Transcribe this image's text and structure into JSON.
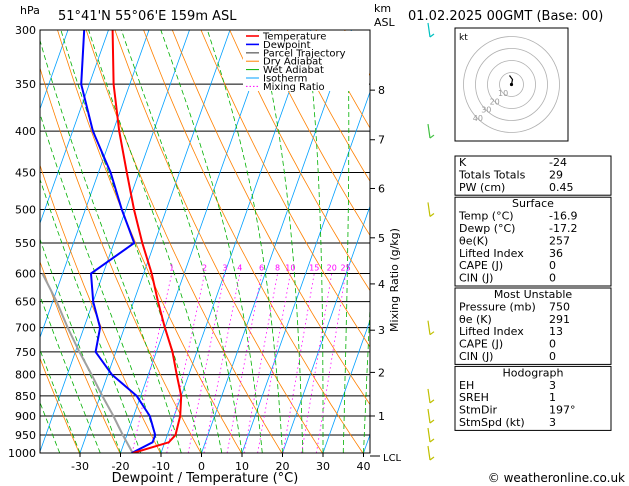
{
  "header": {
    "unit_hpa": "hPa",
    "location": "51°41'N  55°06'E  159m  ASL",
    "unit_km": "km",
    "unit_asl": "ASL",
    "datetime": "01.02.2025  00GMT  (Base: 00)"
  },
  "footer": {
    "copyright": "© weatheronline.co.uk"
  },
  "chart_data": {
    "type": "skew-t",
    "xlabel": "Dewpoint / Temperature (°C)",
    "ylabel_right": "Mixing Ratio (g/kg)",
    "pressure_levels": [
      300,
      350,
      400,
      450,
      500,
      550,
      600,
      650,
      700,
      750,
      800,
      850,
      900,
      950,
      1000
    ],
    "xticks": [
      -30,
      -20,
      -10,
      0,
      10,
      20,
      30,
      40
    ],
    "km_ticks": [
      {
        "km": "8",
        "p": 356
      },
      {
        "km": "7",
        "p": 410
      },
      {
        "km": "6",
        "p": 471
      },
      {
        "km": "5",
        "p": 542
      },
      {
        "km": "4",
        "p": 618
      },
      {
        "km": "3",
        "p": 705
      },
      {
        "km": "2",
        "p": 795
      },
      {
        "km": "1",
        "p": 900
      }
    ],
    "lcl_label": "LCL",
    "mixing_ratio_labels": [
      "1",
      "2",
      "3",
      "4",
      "6",
      "8",
      "10",
      "15",
      "20",
      "25"
    ],
    "legend": [
      "Temperature",
      "Dewpoint",
      "Parcel Trajectory",
      "Dry Adiabat",
      "Wet Adiabat",
      "Isotherm",
      "Mixing Ratio"
    ],
    "legend_colors": [
      "#ff0000",
      "#0000ff",
      "#808080",
      "#ff8000",
      "#00b000",
      "#00a0ff",
      "#ff00ff"
    ],
    "temperature": [
      [
        1000,
        -16.9
      ],
      [
        970,
        -9
      ],
      [
        950,
        -8
      ],
      [
        900,
        -8.5
      ],
      [
        850,
        -10
      ],
      [
        800,
        -13
      ],
      [
        750,
        -16
      ],
      [
        700,
        -20
      ],
      [
        650,
        -24
      ],
      [
        600,
        -28
      ],
      [
        550,
        -33
      ],
      [
        500,
        -38
      ],
      [
        450,
        -43
      ],
      [
        400,
        -48.5
      ],
      [
        350,
        -54
      ],
      [
        300,
        -59
      ]
    ],
    "dewpoint": [
      [
        1000,
        -17.2
      ],
      [
        970,
        -13
      ],
      [
        950,
        -13
      ],
      [
        900,
        -16
      ],
      [
        850,
        -21
      ],
      [
        800,
        -29
      ],
      [
        750,
        -35
      ],
      [
        700,
        -36
      ],
      [
        650,
        -40
      ],
      [
        600,
        -43
      ],
      [
        550,
        -35
      ],
      [
        500,
        -41
      ],
      [
        450,
        -47
      ],
      [
        400,
        -55
      ],
      [
        350,
        -62
      ],
      [
        300,
        -66
      ]
    ],
    "parcel": [
      [
        1000,
        -17
      ],
      [
        950,
        -21
      ],
      [
        900,
        -25
      ],
      [
        850,
        -29.5
      ],
      [
        800,
        -34
      ],
      [
        750,
        -39
      ],
      [
        700,
        -44
      ],
      [
        650,
        -49
      ],
      [
        600,
        -55
      ]
    ]
  },
  "hodograph": {
    "unit_label": "kt",
    "rings": [
      "10",
      "20",
      "30",
      "40"
    ]
  },
  "indices": {
    "rows": [
      {
        "label": "K",
        "value": "-24"
      },
      {
        "label": "Totals Totals",
        "value": "29"
      },
      {
        "label": "PW (cm)",
        "value": "0.45"
      }
    ]
  },
  "surface": {
    "title": "Surface",
    "rows": [
      {
        "label": "Temp (°C)",
        "value": "-16.9"
      },
      {
        "label": "Dewp (°C)",
        "value": "-17.2"
      },
      {
        "label": "θe(K)",
        "value": "257"
      },
      {
        "label": "Lifted Index",
        "value": "36"
      },
      {
        "label": "CAPE (J)",
        "value": "0"
      },
      {
        "label": "CIN (J)",
        "value": "0"
      }
    ]
  },
  "most_unstable": {
    "title": "Most Unstable",
    "rows": [
      {
        "label": "Pressure (mb)",
        "value": "750"
      },
      {
        "label": "θe (K)",
        "value": "291"
      },
      {
        "label": "Lifted Index",
        "value": "13"
      },
      {
        "label": "CAPE (J)",
        "value": "0"
      },
      {
        "label": "CIN (J)",
        "value": "0"
      }
    ]
  },
  "hodograph_table": {
    "title": "Hodograph",
    "rows": [
      {
        "label": "EH",
        "value": "3"
      },
      {
        "label": "SREH",
        "value": "1"
      },
      {
        "label": "StmDir",
        "value": "197°"
      },
      {
        "label": "StmSpd (kt)",
        "value": "3"
      }
    ]
  }
}
